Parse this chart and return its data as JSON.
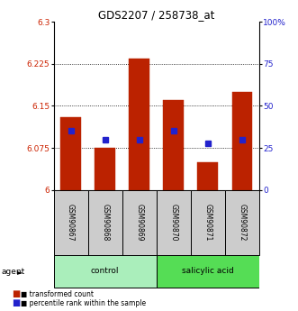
{
  "title": "GDS2207 / 258738_at",
  "samples": [
    "GSM90867",
    "GSM90868",
    "GSM90869",
    "GSM90870",
    "GSM90871",
    "GSM90872"
  ],
  "bar_values": [
    6.13,
    6.075,
    6.235,
    6.16,
    6.05,
    6.175
  ],
  "bar_bottom": 6.0,
  "blue_percentile": [
    35,
    30,
    30,
    35,
    28,
    30
  ],
  "ylim_left": [
    6.0,
    6.3
  ],
  "yticks_left": [
    6.0,
    6.075,
    6.15,
    6.225,
    6.3
  ],
  "ytick_labels_left": [
    "6",
    "6.075",
    "6.15",
    "6.225",
    "6.3"
  ],
  "ylim_right": [
    0,
    100
  ],
  "yticks_right": [
    0,
    25,
    50,
    75,
    100
  ],
  "ytick_labels_right": [
    "0",
    "25",
    "50",
    "75",
    "100%"
  ],
  "bar_color": "#BB2200",
  "blue_color": "#2222CC",
  "label_color_left": "#CC2200",
  "label_color_right": "#2222CC",
  "control_color": "#AAEEBB",
  "salicylic_color": "#55DD55",
  "sample_box_color": "#CCCCCC"
}
